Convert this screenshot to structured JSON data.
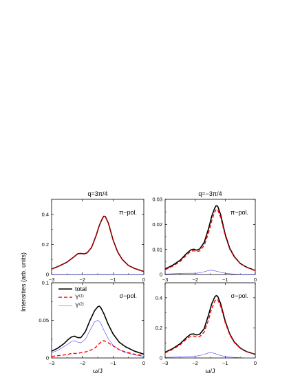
{
  "ylabel": "Intensities (arb. units)",
  "colors": {
    "total": "#000000",
    "y1": "#ff0000",
    "y2": "#4040ff",
    "overlay": "#8b0000"
  },
  "chart_data": [
    {
      "type": "line",
      "title": "q=3π/4",
      "annotation": "π−pol.",
      "xlabel": "",
      "xlim": [
        -3,
        0
      ],
      "ylim": [
        0,
        0.5
      ],
      "xticks": [
        -3,
        -2,
        -1,
        0
      ],
      "xticklabels": [
        "−3",
        "−2",
        "−1",
        "0"
      ],
      "yticks": [
        0,
        0.2,
        0.4
      ],
      "yticklabels": [
        "0",
        "0.2",
        "0.4"
      ],
      "x": [
        -3.0,
        -2.75,
        -2.5,
        -2.3,
        -2.15,
        -2.05,
        -1.95,
        -1.85,
        -1.7,
        -1.55,
        -1.45,
        -1.35,
        -1.3,
        -1.25,
        -1.15,
        -1.0,
        -0.85,
        -0.7,
        -0.5,
        -0.3,
        0.0
      ],
      "series": [
        {
          "name": "total",
          "key": "total",
          "style": "solid",
          "values": [
            0.036,
            0.057,
            0.082,
            0.113,
            0.138,
            0.14,
            0.137,
            0.143,
            0.18,
            0.26,
            0.325,
            0.372,
            0.388,
            0.385,
            0.34,
            0.23,
            0.15,
            0.1,
            0.06,
            0.04,
            0.02
          ]
        },
        {
          "name": "Y(1)",
          "key": "y1",
          "style": "dashed",
          "values": [
            0.036,
            0.057,
            0.082,
            0.113,
            0.138,
            0.14,
            0.137,
            0.143,
            0.18,
            0.26,
            0.325,
            0.372,
            0.388,
            0.385,
            0.34,
            0.23,
            0.15,
            0.1,
            0.06,
            0.04,
            0.02
          ]
        },
        {
          "name": "Y(2)",
          "key": "y2",
          "style": "thin",
          "values": [
            0.0,
            0.0,
            0.0,
            0.0,
            0.0,
            0.0,
            0.0,
            0.0,
            0.0,
            0.0,
            0.0,
            0.0,
            0.0,
            0.0,
            0.0,
            0.0,
            0.0,
            0.0,
            0.0,
            0.0,
            0.0
          ]
        }
      ]
    },
    {
      "type": "line",
      "title": "q=−3π/4",
      "annotation": "π−pol.",
      "xlabel": "",
      "xlim": [
        -3,
        0
      ],
      "ylim": [
        0,
        0.03
      ],
      "xticks": [
        -3,
        -2,
        -1,
        0
      ],
      "xticklabels": [
        "−3",
        "−2",
        "−1",
        "0"
      ],
      "yticks": [
        0,
        0.01,
        0.02,
        0.03
      ],
      "yticklabels": [
        "0",
        "0.01",
        "0.02",
        "0.03"
      ],
      "x": [
        -3.0,
        -2.75,
        -2.5,
        -2.3,
        -2.15,
        -2.05,
        -1.95,
        -1.85,
        -1.7,
        -1.55,
        -1.45,
        -1.35,
        -1.3,
        -1.25,
        -1.15,
        -1.0,
        -0.85,
        -0.7,
        -0.5,
        -0.3,
        0.0
      ],
      "series": [
        {
          "name": "total",
          "key": "total",
          "style": "solid",
          "values": [
            0.0022,
            0.0037,
            0.0057,
            0.0082,
            0.0098,
            0.0101,
            0.0097,
            0.0102,
            0.0128,
            0.0185,
            0.0232,
            0.0265,
            0.0275,
            0.0272,
            0.0238,
            0.016,
            0.0105,
            0.0072,
            0.0044,
            0.003,
            0.0016
          ]
        },
        {
          "name": "Y(1)",
          "key": "y1",
          "style": "dashed",
          "values": [
            0.0019,
            0.0033,
            0.0052,
            0.0076,
            0.0092,
            0.0095,
            0.0091,
            0.0094,
            0.0116,
            0.0168,
            0.0214,
            0.0249,
            0.026,
            0.0259,
            0.0227,
            0.0154,
            0.0101,
            0.007,
            0.0043,
            0.0029,
            0.0015
          ]
        },
        {
          "name": "Y(2)",
          "key": "y2",
          "style": "thin",
          "values": [
            0.0002,
            0.0003,
            0.0004,
            0.0005,
            0.0005,
            0.0005,
            0.0005,
            0.0007,
            0.0011,
            0.0016,
            0.0017,
            0.0015,
            0.0013,
            0.0012,
            0.0009,
            0.0005,
            0.0003,
            0.0002,
            0.0001,
            0.0001,
            0.0001
          ]
        }
      ]
    },
    {
      "type": "line",
      "title": "",
      "annotation": "σ−pol.",
      "xlabel": "ω/J",
      "xlim": [
        -3,
        0
      ],
      "ylim": [
        0,
        0.1
      ],
      "xticks": [
        -3,
        -2,
        -1,
        0
      ],
      "xticklabels": [
        "−3",
        "−2",
        "−1",
        "0"
      ],
      "yticks": [
        0,
        0.05,
        0.1
      ],
      "yticklabels": [
        "0",
        "0.05",
        "0.1"
      ],
      "legend": {
        "position": "top-left",
        "entries": [
          {
            "key": "total",
            "label": "total",
            "style": "solid"
          },
          {
            "key": "y1",
            "label": "Y",
            "sup": "(1)",
            "style": "dashed"
          },
          {
            "key": "y2",
            "label": "Y",
            "sup": "(2)",
            "style": "thin"
          }
        ]
      },
      "x": [
        -3.0,
        -2.8,
        -2.6,
        -2.45,
        -2.35,
        -2.25,
        -2.15,
        -2.05,
        -1.9,
        -1.75,
        -1.6,
        -1.5,
        -1.45,
        -1.4,
        -1.3,
        -1.15,
        -1.0,
        -0.8,
        -0.6,
        -0.3,
        0.0
      ],
      "series": [
        {
          "name": "total",
          "key": "total",
          "style": "solid",
          "values": [
            0.009,
            0.013,
            0.019,
            0.025,
            0.028,
            0.029,
            0.027,
            0.027,
            0.035,
            0.05,
            0.063,
            0.068,
            0.069,
            0.067,
            0.059,
            0.044,
            0.032,
            0.021,
            0.015,
            0.009,
            0.005
          ]
        },
        {
          "name": "Y(1)",
          "key": "y1",
          "style": "dashed",
          "values": [
            0.002,
            0.003,
            0.004,
            0.005,
            0.006,
            0.006,
            0.006,
            0.007,
            0.008,
            0.01,
            0.013,
            0.017,
            0.019,
            0.021,
            0.023,
            0.02,
            0.016,
            0.011,
            0.008,
            0.005,
            0.003
          ]
        },
        {
          "name": "Y(2)",
          "key": "y2",
          "style": "thin",
          "values": [
            0.007,
            0.01,
            0.015,
            0.019,
            0.022,
            0.023,
            0.021,
            0.02,
            0.025,
            0.037,
            0.048,
            0.05,
            0.049,
            0.046,
            0.037,
            0.025,
            0.017,
            0.011,
            0.007,
            0.004,
            0.002
          ]
        }
      ]
    },
    {
      "type": "line",
      "title": "",
      "annotation": "σ−pol.",
      "xlabel": "ω/J",
      "xlim": [
        -3,
        0
      ],
      "ylim": [
        0,
        0.5
      ],
      "xticks": [
        -3,
        -2,
        -1,
        0
      ],
      "xticklabels": [
        "−3",
        "−2",
        "−1",
        "0"
      ],
      "yticks": [
        0,
        0.2,
        0.4
      ],
      "yticklabels": [
        "0",
        "0.2",
        "0.4"
      ],
      "x": [
        -3.0,
        -2.75,
        -2.5,
        -2.3,
        -2.15,
        -2.05,
        -1.95,
        -1.85,
        -1.7,
        -1.55,
        -1.45,
        -1.35,
        -1.3,
        -1.25,
        -1.15,
        -1.0,
        -0.85,
        -0.7,
        -0.5,
        -0.3,
        0.0
      ],
      "series": [
        {
          "name": "total",
          "key": "total",
          "style": "solid",
          "values": [
            0.038,
            0.062,
            0.095,
            0.134,
            0.158,
            0.16,
            0.153,
            0.158,
            0.195,
            0.29,
            0.36,
            0.405,
            0.415,
            0.41,
            0.36,
            0.245,
            0.16,
            0.107,
            0.066,
            0.043,
            0.024
          ]
        },
        {
          "name": "Y(1)",
          "key": "y1",
          "style": "dashed",
          "values": [
            0.034,
            0.057,
            0.088,
            0.124,
            0.145,
            0.146,
            0.14,
            0.142,
            0.172,
            0.257,
            0.329,
            0.377,
            0.39,
            0.388,
            0.343,
            0.235,
            0.154,
            0.103,
            0.064,
            0.042,
            0.023
          ]
        },
        {
          "name": "Y(2)",
          "key": "y2",
          "style": "thin",
          "values": [
            0.004,
            0.005,
            0.007,
            0.009,
            0.012,
            0.013,
            0.013,
            0.016,
            0.024,
            0.034,
            0.035,
            0.03,
            0.026,
            0.022,
            0.016,
            0.01,
            0.006,
            0.004,
            0.002,
            0.001,
            0.001
          ]
        }
      ]
    }
  ]
}
